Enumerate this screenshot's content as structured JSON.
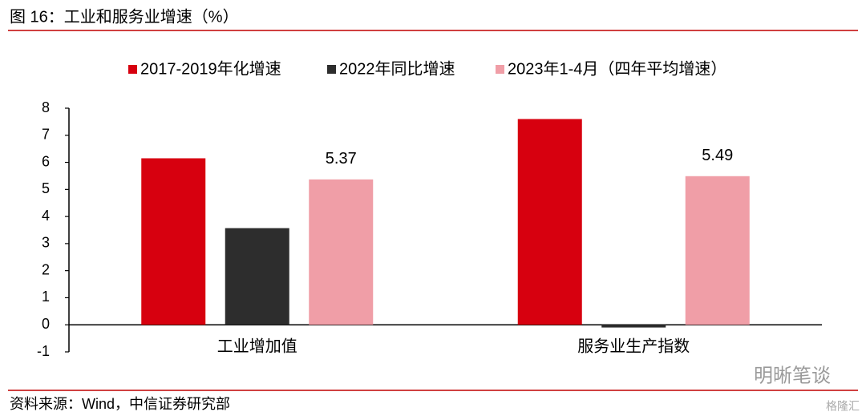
{
  "chart_data": {
    "type": "bar",
    "title": "图 16：工业和服务业增速（%）",
    "categories": [
      "工业增加值",
      "服务业生产指数"
    ],
    "series": [
      {
        "name": "2017-2019年化增速",
        "color": "#d7000f",
        "values": [
          6.15,
          7.6
        ]
      },
      {
        "name": "2022年同比增速",
        "color": "#2d2d2d",
        "values": [
          3.57,
          -0.1
        ]
      },
      {
        "name": "2023年1-4月（四年平均增速）",
        "color": "#f09ea7",
        "values": [
          5.37,
          5.49
        ],
        "show_values": true
      }
    ],
    "ylim": [
      -1,
      8
    ],
    "yticks": [
      -1,
      0,
      1,
      2,
      3,
      4,
      5,
      6,
      7,
      8
    ],
    "grid": false,
    "legend": "top",
    "source": "资料来源：Wind，中信证券研究部",
    "watermarks": [
      "明晰笔谈",
      "格隆汇"
    ]
  }
}
